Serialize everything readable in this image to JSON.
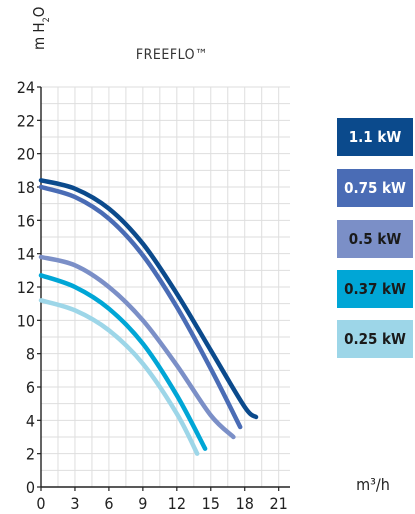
{
  "chart_data": {
    "type": "line",
    "title": "FREEFLO™",
    "ylabel_parts": {
      "main": "m H",
      "sub": "2",
      "tail": "O"
    },
    "xlabel": "m³/h",
    "xlim": [
      0,
      22
    ],
    "ylim": [
      0,
      24
    ],
    "xticks": [
      0,
      3,
      6,
      9,
      12,
      15,
      18,
      21
    ],
    "yticks": [
      0,
      2,
      4,
      6,
      8,
      10,
      12,
      14,
      16,
      18,
      20,
      22,
      24
    ],
    "grid": true,
    "legend_position": "right",
    "series": [
      {
        "name": "1.1 kW",
        "color": "#0b4a8c",
        "text_color": "dark",
        "points": [
          [
            0,
            18.4
          ],
          [
            3,
            17.9
          ],
          [
            6,
            16.7
          ],
          [
            9,
            14.6
          ],
          [
            12,
            11.6
          ],
          [
            15,
            8.2
          ],
          [
            18,
            4.8
          ],
          [
            19,
            4.2
          ]
        ]
      },
      {
        "name": "0.75 kW",
        "color": "#4a6cb5",
        "text_color": "dark",
        "points": [
          [
            0,
            18.0
          ],
          [
            3,
            17.4
          ],
          [
            6,
            16.1
          ],
          [
            9,
            13.9
          ],
          [
            12,
            10.8
          ],
          [
            15,
            7.1
          ],
          [
            17.6,
            3.6
          ]
        ]
      },
      {
        "name": "0.5 kW",
        "color": "#7b8fc7",
        "text_color": "light",
        "points": [
          [
            0,
            13.8
          ],
          [
            3,
            13.3
          ],
          [
            6,
            12.0
          ],
          [
            9,
            10.0
          ],
          [
            12,
            7.3
          ],
          [
            15,
            4.3
          ],
          [
            17,
            3.0
          ]
        ]
      },
      {
        "name": "0.37 kW",
        "color": "#00a6d6",
        "text_color": "light",
        "points": [
          [
            0,
            12.7
          ],
          [
            3,
            12.0
          ],
          [
            6,
            10.7
          ],
          [
            9,
            8.6
          ],
          [
            12,
            5.5
          ],
          [
            14.5,
            2.3
          ]
        ]
      },
      {
        "name": "0.25 kW",
        "color": "#9dd6e8",
        "text_color": "light",
        "points": [
          [
            0,
            11.2
          ],
          [
            3,
            10.6
          ],
          [
            6,
            9.4
          ],
          [
            9,
            7.4
          ],
          [
            12,
            4.4
          ],
          [
            13.8,
            2.0
          ]
        ]
      }
    ]
  }
}
